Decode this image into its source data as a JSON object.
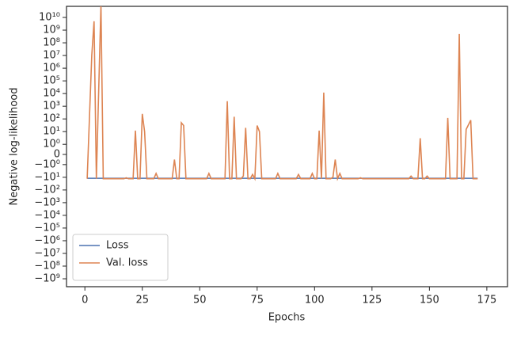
{
  "chart_data": {
    "type": "line",
    "x_label": "Epochs",
    "y_label": "Negative log-likelihood",
    "x": [
      1,
      3,
      4,
      5,
      7,
      8,
      17,
      18,
      19,
      21,
      22,
      23,
      24,
      25,
      26,
      27,
      30,
      31,
      32,
      38,
      39,
      40,
      41,
      42,
      43,
      44,
      53,
      54,
      55,
      61,
      62,
      63,
      64,
      65,
      66,
      68,
      69,
      70,
      71,
      72,
      73,
      74,
      75,
      76,
      77,
      83,
      84,
      85,
      92,
      93,
      94,
      98,
      99,
      100,
      101,
      102,
      103,
      104,
      105,
      107,
      108,
      109,
      110,
      111,
      112,
      119,
      120,
      121,
      141,
      142,
      143,
      145,
      146,
      147,
      148,
      149,
      150,
      157,
      158,
      159,
      162,
      163,
      164,
      165,
      166,
      168,
      169,
      171
    ],
    "series": [
      {
        "name": "Loss",
        "color": "#4c72b0",
        "values": [
          -12,
          -12,
          -12,
          -12,
          -12,
          -12,
          -12,
          -12,
          -12,
          -12,
          -12,
          -12,
          -12,
          -12,
          -12,
          -12,
          -12,
          -12,
          -12,
          -12,
          -12,
          -12,
          -12,
          -12,
          -12,
          -12,
          -12,
          -12,
          -12,
          -12,
          -12,
          -12,
          -12,
          -12,
          -12,
          -12,
          -12,
          -12,
          -12,
          -12,
          -12,
          -12,
          -12,
          -12,
          -12,
          -12,
          -12,
          -12,
          -12,
          -12,
          -12,
          -12,
          -12,
          -12,
          -12,
          -12,
          -12,
          -12,
          -12,
          -12,
          -12,
          -12,
          -12,
          -12,
          -12,
          -12,
          -12,
          -12,
          -12,
          -12,
          -12,
          -12,
          -12,
          -12,
          -12,
          -12,
          -12,
          -12,
          -12,
          -12,
          -12,
          -12,
          -12,
          -12,
          -12,
          -12,
          -12,
          -12
        ]
      },
      {
        "name": "Val. loss",
        "color": "#dd8452",
        "values": [
          -13,
          10000000,
          5000000000,
          -13,
          100000000000,
          -13,
          -13,
          -11,
          -13,
          -13,
          12,
          -13,
          -13,
          250,
          10,
          -13,
          -13,
          -5,
          -13,
          -13,
          -0.5,
          -13,
          -13,
          50,
          30,
          -13,
          -13,
          -5,
          -13,
          -13,
          2500,
          -13,
          -13,
          150,
          -13,
          -13,
          -8,
          20,
          -13,
          -13,
          -6,
          -13,
          30,
          10,
          -13,
          -13,
          -5,
          -13,
          -13,
          -6,
          -13,
          -13,
          -5,
          -13,
          -13,
          12,
          -13,
          12000,
          -13,
          -13,
          -10,
          -0.5,
          -13,
          -5,
          -13,
          -13,
          -11,
          -13,
          -13,
          -8,
          -13,
          -13,
          3,
          -13,
          -13,
          -8,
          -13,
          -13,
          120,
          -13,
          -13,
          500000000,
          -13,
          -13,
          15,
          80,
          -13,
          -13
        ]
      }
    ],
    "xlim": [
      -8,
      184
    ],
    "xticks": [
      0,
      25,
      50,
      75,
      100,
      125,
      150,
      175
    ],
    "yscale": "symlog",
    "linthresh": 1,
    "linscale": 0.8,
    "ylim": [
      -4200000000,
      75000000000
    ],
    "yticks": [
      {
        "value": 10000000000,
        "label": "10¹⁰"
      },
      {
        "value": 1000000000,
        "label": "10⁹"
      },
      {
        "value": 100000000,
        "label": "10⁸"
      },
      {
        "value": 10000000,
        "label": "10⁷"
      },
      {
        "value": 1000000,
        "label": "10⁶"
      },
      {
        "value": 100000,
        "label": "10⁵"
      },
      {
        "value": 10000,
        "label": "10⁴"
      },
      {
        "value": 1000,
        "label": "10³"
      },
      {
        "value": 100,
        "label": "10²"
      },
      {
        "value": 10,
        "label": "10¹"
      },
      {
        "value": 1,
        "label": "10⁰"
      },
      0,
      {
        "value": -1,
        "label": "−10⁰"
      },
      {
        "value": -10,
        "label": "−10¹"
      },
      {
        "value": -100,
        "label": "−10²"
      },
      {
        "value": -1000,
        "label": "−10³"
      },
      {
        "value": -10000,
        "label": "−10⁴"
      },
      {
        "value": -100000,
        "label": "−10⁵"
      },
      {
        "value": -1000000,
        "label": "−10⁶"
      },
      {
        "value": -10000000,
        "label": "−10⁷"
      },
      {
        "value": -100000000,
        "label": "−10⁸"
      },
      {
        "value": -1000000000,
        "label": "−10⁹"
      }
    ],
    "legend": "lower left"
  }
}
